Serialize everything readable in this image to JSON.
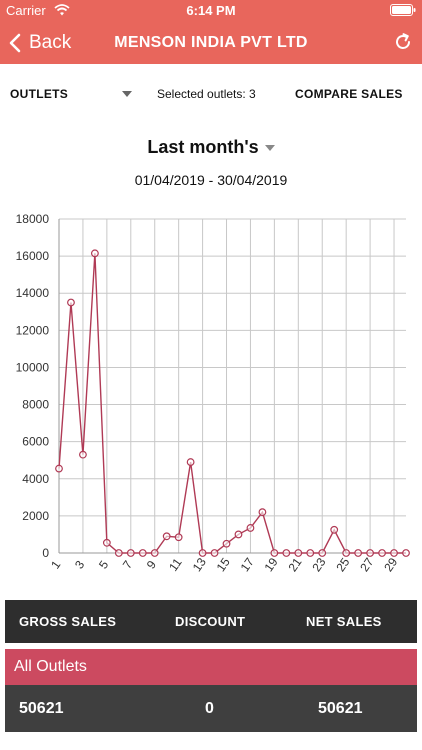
{
  "status_bar": {
    "carrier": "Carrier",
    "time": "6:14 PM"
  },
  "nav": {
    "back_label": "Back",
    "title": "MENSON INDIA PVT LTD"
  },
  "toolbar": {
    "outlets_label": "OUTLETS",
    "selected_outlets": "Selected outlets: 3",
    "compare_label": "COMPARE SALES"
  },
  "period": {
    "label": "Last month's",
    "date_range": "01/04/2019 - 30/04/2019"
  },
  "colors": {
    "header": "#e8665c",
    "line": "#b03a55",
    "highlight_row": "#cc4a60"
  },
  "chart_data": {
    "type": "line",
    "x": [
      1,
      2,
      3,
      4,
      5,
      6,
      7,
      8,
      9,
      10,
      11,
      12,
      13,
      14,
      15,
      16,
      17,
      18,
      19,
      20,
      21,
      22,
      23,
      24,
      25,
      26,
      27,
      28,
      29,
      30
    ],
    "x_tick_labels": [
      "1",
      "3",
      "5",
      "7",
      "9",
      "11",
      "13",
      "15",
      "17",
      "19",
      "21",
      "23",
      "25",
      "27",
      "29"
    ],
    "y_tick_labels": [
      "0",
      "2000",
      "4000",
      "6000",
      "8000",
      "10000",
      "12000",
      "14000",
      "16000",
      "18000"
    ],
    "series": [
      {
        "values": [
          4550,
          13500,
          5300,
          16150,
          550,
          0,
          0,
          0,
          0,
          900,
          850,
          4900,
          0,
          0,
          500,
          1000,
          1350,
          2200,
          0,
          0,
          0,
          0,
          0,
          1250,
          0,
          0,
          0,
          0,
          0,
          0
        ]
      }
    ],
    "ylim": [
      0,
      18000
    ],
    "xlabel": "",
    "ylabel": "",
    "grid": true
  },
  "summary": {
    "headers": [
      "GROSS SALES",
      "DISCOUNT",
      "NET SALES"
    ],
    "all_outlets_label": "All Outlets",
    "values": [
      "50621",
      "0",
      "50621"
    ]
  }
}
